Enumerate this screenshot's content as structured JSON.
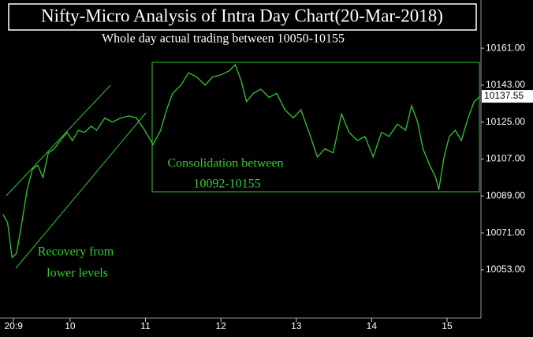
{
  "chart_data": {
    "type": "line",
    "title": "Nifty-Micro Analysis of Intra Day Chart(20-Mar-2018)",
    "subtitle": "Whole day actual trading between 10050-10155",
    "annotations": [
      "Consolidation between",
      "10092-10155",
      "Recovery from",
      "lower levels"
    ],
    "current_price_label": "10137.55",
    "x": [
      9.11,
      9.17,
      9.23,
      9.29,
      9.36,
      9.43,
      9.5,
      9.57,
      9.64,
      9.71,
      9.79,
      9.87,
      9.96,
      10.03,
      10.11,
      10.19,
      10.28,
      10.35,
      10.46,
      10.56,
      10.67,
      10.78,
      10.88,
      10.99,
      11.1,
      11.2,
      11.28,
      11.36,
      11.47,
      11.57,
      11.68,
      11.79,
      11.89,
      12.0,
      12.11,
      12.19,
      12.27,
      12.34,
      12.43,
      12.53,
      12.64,
      12.74,
      12.85,
      12.96,
      13.06,
      13.17,
      13.28,
      13.38,
      13.49,
      13.6,
      13.7,
      13.81,
      13.91,
      14.02,
      14.13,
      14.23,
      14.34,
      14.45,
      14.53,
      14.61,
      14.68,
      14.77,
      14.85,
      14.89,
      14.96,
      15.03,
      15.11,
      15.19,
      15.28,
      15.36,
      15.44
    ],
    "series": [
      {
        "color": "#33c633",
        "values": [
          10080,
          10076,
          10059,
          10061,
          10076,
          10092,
          10102,
          10104,
          10098,
          10110,
          10112,
          10116,
          10120,
          10116,
          10121,
          10120,
          10123,
          10121,
          10127,
          10125,
          10127,
          10128,
          10127,
          10121,
          10114,
          10121,
          10131,
          10139,
          10143,
          10149,
          10147,
          10143,
          10147,
          10148,
          10150,
          10153,
          10145,
          10135,
          10139,
          10141,
          10137,
          10139,
          10131,
          10127,
          10131,
          10120,
          10108,
          10112,
          10110,
          10129,
          10120,
          10116,
          10118,
          10108,
          10120,
          10118,
          10124,
          10121,
          10133,
          10125,
          10112,
          10104,
          10098,
          10092,
          10108,
          10118,
          10121,
          10116,
          10127,
          10135,
          10137.55
        ]
      }
    ],
    "xlim": [
      9.07,
      15.45
    ],
    "xticks": [
      {
        "value": 9.25,
        "label": "20:9"
      },
      10,
      11,
      12,
      13,
      14,
      15
    ],
    "ylim": [
      10029.5,
      10184.5
    ],
    "yticks": [
      {
        "value": 10161,
        "label": "10161.00"
      },
      {
        "value": 10143,
        "label": "10143.00"
      },
      {
        "value": 10125,
        "label": "10125.00"
      },
      {
        "value": 10107,
        "label": "10107.00"
      },
      {
        "value": 10089,
        "label": "10089.00"
      },
      {
        "value": 10071,
        "label": "10071.00"
      },
      {
        "value": 10053,
        "label": "10053.00"
      }
    ],
    "grid": false
  }
}
